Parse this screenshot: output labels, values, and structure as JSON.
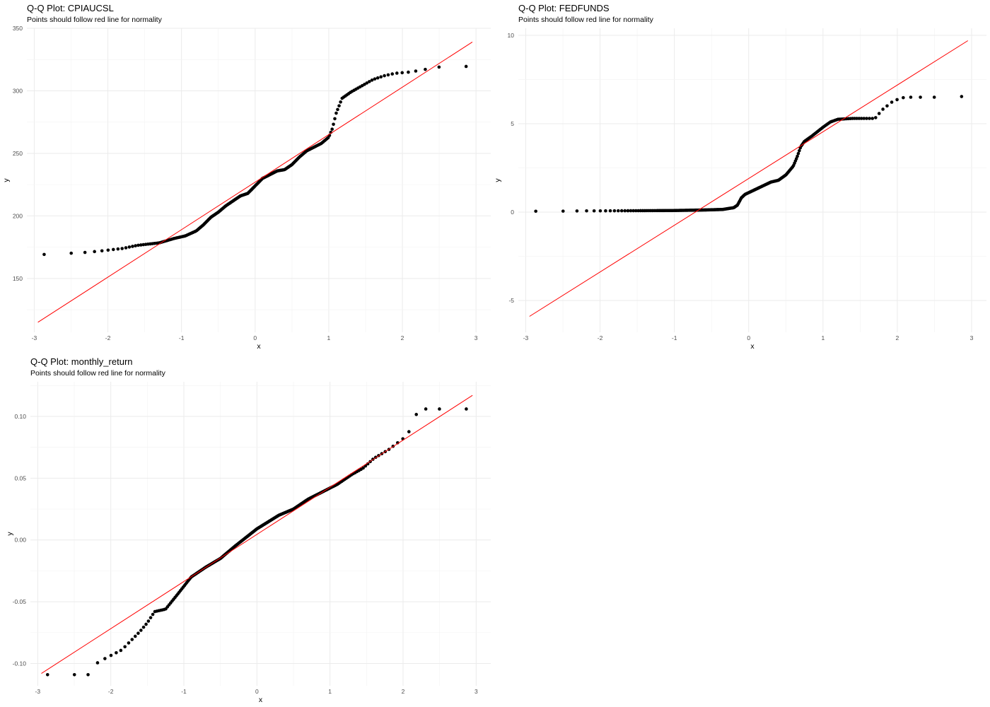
{
  "chart_data": [
    {
      "type": "scatter",
      "title": "Q-Q Plot: CPIAUCSL",
      "subtitle": "Points should follow red line for normality",
      "xlabel": "x",
      "ylabel": "y",
      "xlim": [
        -3.1,
        3.2
      ],
      "ylim": [
        107,
        350
      ],
      "x_ticks": [
        -3,
        -2,
        -1,
        0,
        1,
        2,
        3
      ],
      "y_ticks": [
        150,
        200,
        250,
        300,
        350
      ],
      "grid": true,
      "line_color": "#ff0000",
      "point_color": "#000000",
      "reference_line": {
        "x": [
          -2.95,
          2.95
        ],
        "y": [
          115,
          339
        ]
      },
      "points": {
        "anchors": [
          [
            -2.95,
            169
          ],
          [
            -2.58,
            170
          ],
          [
            -2.4,
            170.5
          ],
          [
            -2.27,
            171
          ],
          [
            -2.1,
            172
          ],
          [
            -1.95,
            173
          ],
          [
            -1.8,
            174
          ],
          [
            -1.6,
            176.5
          ],
          [
            -1.45,
            177.5
          ],
          [
            -1.3,
            178.5
          ],
          [
            -1.1,
            182
          ],
          [
            -0.95,
            184
          ],
          [
            -0.8,
            188
          ],
          [
            -0.7,
            193
          ],
          [
            -0.6,
            199
          ],
          [
            -0.5,
            203
          ],
          [
            -0.4,
            208
          ],
          [
            -0.3,
            212
          ],
          [
            -0.2,
            216
          ],
          [
            -0.1,
            218
          ],
          [
            0,
            224
          ],
          [
            0.1,
            230
          ],
          [
            0.2,
            233
          ],
          [
            0.3,
            236
          ],
          [
            0.4,
            237
          ],
          [
            0.5,
            241
          ],
          [
            0.6,
            247
          ],
          [
            0.7,
            252
          ],
          [
            0.8,
            255
          ],
          [
            0.9,
            258
          ],
          [
            1.0,
            263
          ],
          [
            1.05,
            270
          ],
          [
            1.1,
            282
          ],
          [
            1.18,
            294
          ],
          [
            1.3,
            299
          ],
          [
            1.45,
            304
          ],
          [
            1.6,
            309
          ],
          [
            1.75,
            312
          ],
          [
            1.9,
            314
          ],
          [
            2.1,
            315
          ],
          [
            2.3,
            317
          ],
          [
            2.42,
            318.5
          ],
          [
            2.58,
            319.5
          ],
          [
            2.95,
            319.5
          ]
        ],
        "count": 240
      }
    },
    {
      "type": "scatter",
      "title": "Q-Q Plot: FEDFUNDS",
      "subtitle": "Points should follow red line for normality",
      "xlabel": "x",
      "ylabel": "y",
      "xlim": [
        -3.1,
        3.2
      ],
      "ylim": [
        -6.8,
        10.4
      ],
      "x_ticks": [
        -3,
        -2,
        -1,
        0,
        1,
        2,
        3
      ],
      "y_ticks": [
        -5,
        0,
        5,
        10
      ],
      "grid": true,
      "line_color": "#ff0000",
      "point_color": "#000000",
      "reference_line": {
        "x": [
          -2.95,
          2.95
        ],
        "y": [
          -5.9,
          9.7
        ]
      },
      "points": {
        "anchors": [
          [
            -2.95,
            0.05
          ],
          [
            -2.58,
            0.05
          ],
          [
            -2.4,
            0.06
          ],
          [
            -2.2,
            0.07
          ],
          [
            -2.0,
            0.07
          ],
          [
            -1.5,
            0.08
          ],
          [
            -1.0,
            0.09
          ],
          [
            -0.6,
            0.12
          ],
          [
            -0.35,
            0.15
          ],
          [
            -0.2,
            0.25
          ],
          [
            -0.15,
            0.4
          ],
          [
            -0.1,
            0.8
          ],
          [
            -0.05,
            1.0
          ],
          [
            0.05,
            1.2
          ],
          [
            0.2,
            1.5
          ],
          [
            0.3,
            1.7
          ],
          [
            0.4,
            1.8
          ],
          [
            0.5,
            2.1
          ],
          [
            0.6,
            2.6
          ],
          [
            0.65,
            3.1
          ],
          [
            0.7,
            3.7
          ],
          [
            0.75,
            4.0
          ],
          [
            0.85,
            4.3
          ],
          [
            1.0,
            4.8
          ],
          [
            1.1,
            5.1
          ],
          [
            1.2,
            5.25
          ],
          [
            1.4,
            5.3
          ],
          [
            1.6,
            5.3
          ],
          [
            1.7,
            5.3
          ],
          [
            1.8,
            5.8
          ],
          [
            1.95,
            6.3
          ],
          [
            2.1,
            6.5
          ],
          [
            2.4,
            6.5
          ],
          [
            2.58,
            6.5
          ],
          [
            2.95,
            6.55
          ]
        ],
        "count": 240
      }
    },
    {
      "type": "scatter",
      "title": "Q-Q Plot: monthly_return",
      "subtitle": "Points should follow red line for normality",
      "xlabel": "x",
      "ylabel": "y",
      "xlim": [
        -3.1,
        3.2
      ],
      "ylim": [
        -0.118,
        0.128
      ],
      "x_ticks": [
        -3,
        -2,
        -1,
        0,
        1,
        2,
        3
      ],
      "y_ticks": [
        -0.1,
        -0.05,
        0.0,
        0.05,
        0.1
      ],
      "y_tick_labels": [
        "-0.10",
        "-0.05",
        "0.00",
        "0.05",
        "0.10"
      ],
      "grid": true,
      "line_color": "#ff0000",
      "point_color": "#000000",
      "reference_line": {
        "x": [
          -2.95,
          2.95
        ],
        "y": [
          -0.108,
          0.117
        ]
      },
      "points": {
        "anchors": [
          [
            -2.95,
            -0.109
          ],
          [
            -2.58,
            -0.109
          ],
          [
            -2.4,
            -0.109
          ],
          [
            -2.27,
            -0.109
          ],
          [
            -2.2,
            -0.1
          ],
          [
            -2.05,
            -0.095
          ],
          [
            -1.85,
            -0.089
          ],
          [
            -1.6,
            -0.074
          ],
          [
            -1.5,
            -0.067
          ],
          [
            -1.4,
            -0.058
          ],
          [
            -1.25,
            -0.056
          ],
          [
            -1.1,
            -0.045
          ],
          [
            -0.9,
            -0.03
          ],
          [
            -0.7,
            -0.022
          ],
          [
            -0.5,
            -0.015
          ],
          [
            -0.3,
            -0.005
          ],
          [
            0,
            0.009
          ],
          [
            0.3,
            0.02
          ],
          [
            0.5,
            0.025
          ],
          [
            0.7,
            0.033
          ],
          [
            0.9,
            0.039
          ],
          [
            1.1,
            0.045
          ],
          [
            1.3,
            0.053
          ],
          [
            1.45,
            0.058
          ],
          [
            1.6,
            0.066
          ],
          [
            1.8,
            0.073
          ],
          [
            2.0,
            0.082
          ],
          [
            2.1,
            0.089
          ],
          [
            2.15,
            0.1
          ],
          [
            2.27,
            0.106
          ],
          [
            2.42,
            0.106
          ],
          [
            2.58,
            0.106
          ],
          [
            2.95,
            0.106
          ]
        ],
        "count": 240
      }
    }
  ]
}
